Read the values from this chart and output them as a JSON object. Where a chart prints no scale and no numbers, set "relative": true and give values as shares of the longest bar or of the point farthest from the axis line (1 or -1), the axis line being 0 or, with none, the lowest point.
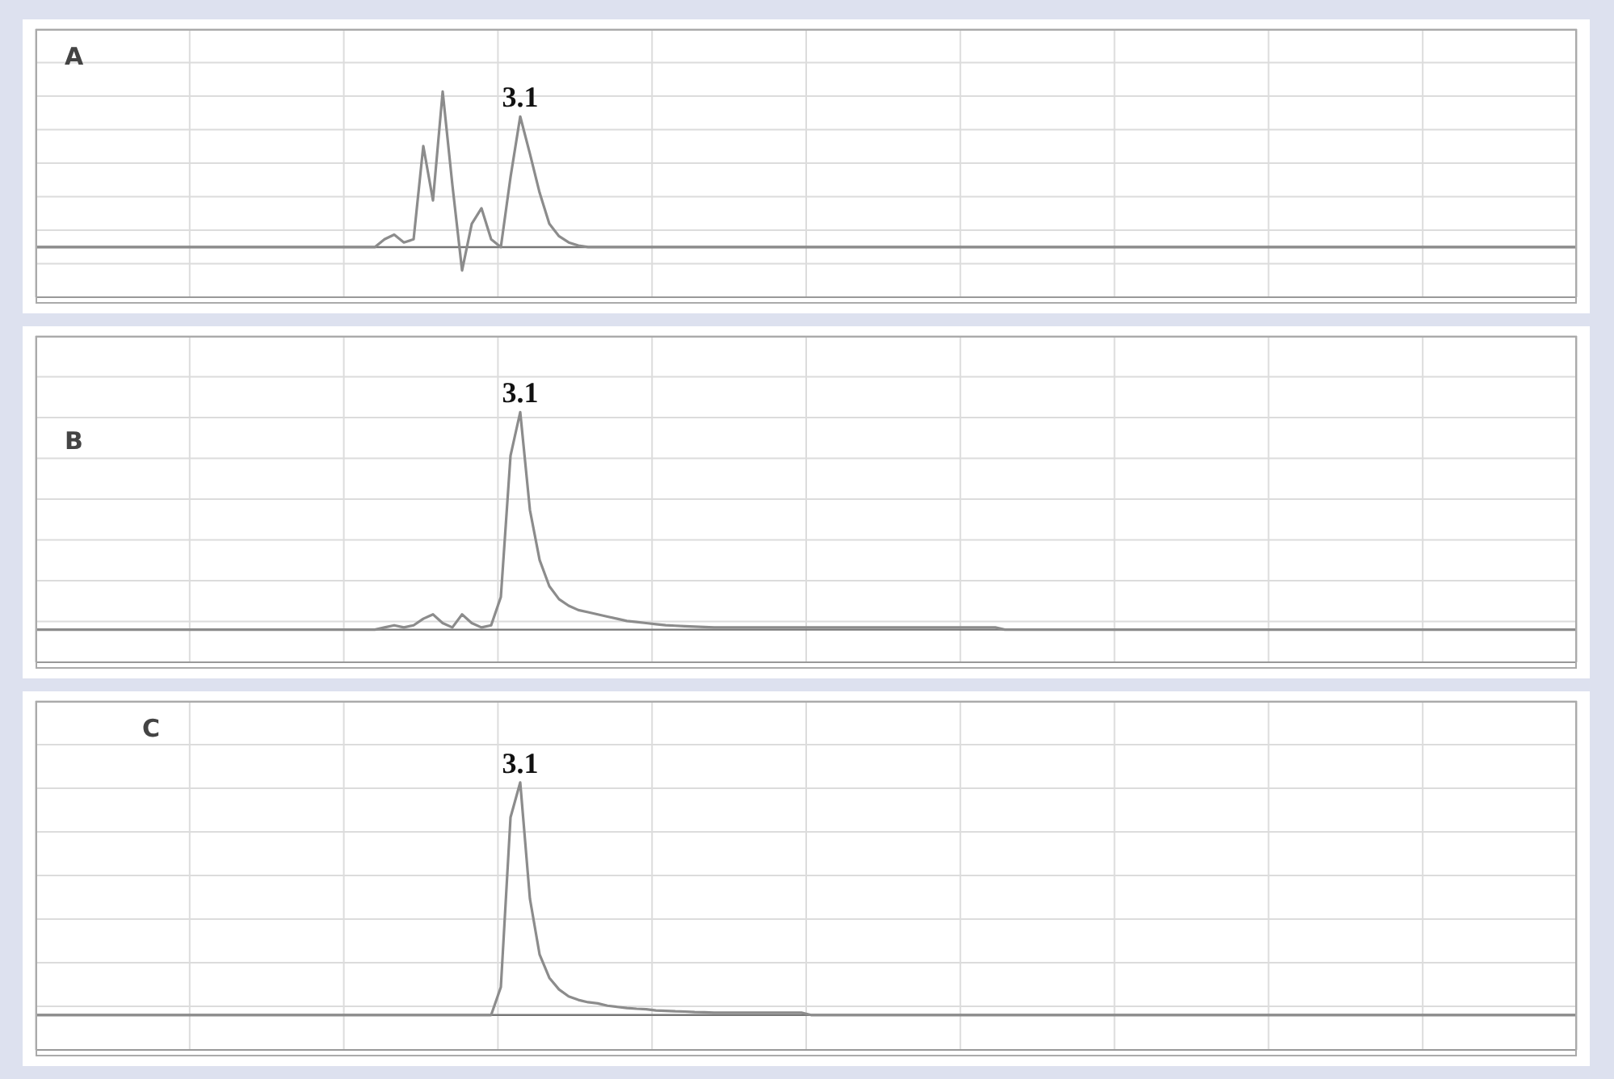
{
  "chart_data": [
    {
      "type": "line",
      "title": "A",
      "relative": true,
      "grid": true,
      "marker": "none",
      "color": "#8c8c8c",
      "annotations": [
        {
          "text": "3.1",
          "y": 0.84
        }
      ],
      "categories": [
        null,
        null,
        null,
        null,
        null,
        null,
        null,
        null,
        null,
        null,
        null,
        null,
        null,
        null,
        null,
        null,
        null,
        null,
        null,
        null,
        null,
        null,
        null,
        null,
        null,
        null,
        null,
        null,
        null,
        null,
        null,
        null,
        null,
        null,
        null,
        null,
        null,
        null,
        null,
        null,
        null,
        null,
        null,
        null,
        null,
        null,
        null,
        null,
        null,
        null,
        null,
        null,
        null,
        null,
        null,
        null,
        null,
        null,
        null,
        null,
        null,
        null,
        null,
        null,
        null,
        null,
        null,
        null,
        null,
        null,
        null,
        null,
        null,
        null,
        null,
        null,
        null,
        null,
        null,
        null,
        null,
        null,
        null,
        null,
        null,
        null,
        null,
        null,
        null,
        null,
        null,
        null,
        null,
        null,
        null,
        null,
        null,
        null,
        null,
        null,
        null,
        null,
        null,
        null,
        null,
        null,
        null,
        null,
        null,
        null,
        null,
        null,
        null,
        null,
        null,
        null,
        null,
        null,
        null,
        null,
        null,
        null,
        null,
        null,
        null,
        null,
        null,
        null,
        null,
        null,
        null,
        null,
        null,
        null,
        null,
        null,
        null,
        null,
        null,
        null,
        null,
        null,
        null,
        null,
        null,
        null,
        null,
        null,
        null,
        null,
        null,
        null,
        null,
        null,
        null,
        null,
        null,
        null,
        null,
        null
      ],
      "values": [
        0,
        0,
        0,
        0,
        0,
        0,
        0,
        0,
        0,
        0,
        0,
        0,
        0,
        0,
        0,
        0,
        0,
        0,
        0,
        0,
        0,
        0,
        0,
        0,
        0,
        0,
        0,
        0,
        0,
        0,
        0,
        0,
        0,
        0,
        0,
        0,
        0.05,
        0.08,
        0.03,
        0.05,
        0.65,
        0.3,
        1,
        0.4,
        -0.15,
        0.15,
        0.25,
        0.05,
        0,
        0.45,
        0.84,
        0.6,
        0.35,
        0.15,
        0.07,
        0.03,
        0.01,
        0,
        0,
        0,
        0,
        0,
        0,
        0,
        0,
        0,
        0,
        0,
        0,
        0,
        0,
        0,
        0,
        0,
        0,
        0,
        0,
        0,
        0,
        0,
        0,
        0,
        0,
        0,
        0,
        0,
        0,
        0,
        0,
        0,
        0,
        0,
        0,
        0,
        0,
        0,
        0,
        0,
        0,
        0,
        0,
        0,
        0,
        0,
        0,
        0,
        0,
        0,
        0,
        0,
        0,
        0,
        0,
        0,
        0,
        0,
        0,
        0,
        0,
        0,
        0,
        0,
        0,
        0,
        0,
        0,
        0,
        0,
        0,
        0,
        0,
        0,
        0,
        0,
        0,
        0,
        0,
        0,
        0,
        0,
        0,
        0,
        0,
        0,
        0,
        0,
        0,
        0,
        0,
        0,
        0,
        0,
        0,
        0,
        0,
        0,
        0,
        0,
        0,
        0
      ]
    },
    {
      "type": "line",
      "title": "B",
      "relative": true,
      "grid": true,
      "marker": "none",
      "color": "#8c8c8c",
      "annotations": [
        {
          "text": "3.1",
          "y": 1
        }
      ],
      "categories": [
        null,
        null,
        null,
        null,
        null,
        null,
        null,
        null,
        null,
        null,
        null,
        null,
        null,
        null,
        null,
        null,
        null,
        null,
        null,
        null,
        null,
        null,
        null,
        null,
        null,
        null,
        null,
        null,
        null,
        null,
        null,
        null,
        null,
        null,
        null,
        null,
        null,
        null,
        null,
        null,
        null,
        null,
        null,
        null,
        null,
        null,
        null,
        null,
        null,
        null,
        null,
        null,
        null,
        null,
        null,
        null,
        null,
        null,
        null,
        null,
        null,
        null,
        null,
        null,
        null,
        null,
        null,
        null,
        null,
        null,
        null,
        null,
        null,
        null,
        null,
        null,
        null,
        null,
        null,
        null,
        null,
        null,
        null,
        null,
        null,
        null,
        null,
        null,
        null,
        null,
        null,
        null,
        null,
        null,
        null,
        null,
        null,
        null,
        null,
        null,
        null,
        null,
        null,
        null,
        null,
        null,
        null,
        null,
        null,
        null,
        null,
        null,
        null,
        null,
        null,
        null,
        null,
        null,
        null,
        null,
        null,
        null,
        null,
        null,
        null,
        null,
        null,
        null,
        null,
        null,
        null,
        null,
        null,
        null,
        null,
        null,
        null,
        null,
        null,
        null,
        null,
        null,
        null,
        null,
        null,
        null,
        null,
        null,
        null,
        null,
        null,
        null,
        null,
        null,
        null,
        null,
        null,
        null,
        null,
        null
      ],
      "values": [
        0,
        0,
        0,
        0,
        0,
        0,
        0,
        0,
        0,
        0,
        0,
        0,
        0,
        0,
        0,
        0,
        0,
        0,
        0,
        0,
        0,
        0,
        0,
        0,
        0,
        0,
        0,
        0,
        0,
        0,
        0,
        0,
        0,
        0,
        0,
        0,
        0.01,
        0.02,
        0.01,
        0.02,
        0.05,
        0.07,
        0.03,
        0.01,
        0.07,
        0.03,
        0.01,
        0.02,
        0.15,
        0.8,
        1,
        0.55,
        0.32,
        0.2,
        0.14,
        0.11,
        0.09,
        0.08,
        0.07,
        0.06,
        0.05,
        0.04,
        0.035,
        0.03,
        0.025,
        0.02,
        0.018,
        0.016,
        0.014,
        0.012,
        0.01,
        0.01,
        0.01,
        0.01,
        0.01,
        0.01,
        0.01,
        0.01,
        0.01,
        0.01,
        0.01,
        0.01,
        0.01,
        0.01,
        0.01,
        0.01,
        0.01,
        0.01,
        0.01,
        0.01,
        0.01,
        0.01,
        0.01,
        0.01,
        0.01,
        0.01,
        0.01,
        0.01,
        0.01,
        0.01,
        0,
        0,
        0,
        0,
        0,
        0,
        0,
        0,
        0,
        0,
        0,
        0,
        0,
        0,
        0,
        0,
        0,
        0,
        0,
        0,
        0,
        0,
        0,
        0,
        0,
        0,
        0,
        0,
        0,
        0,
        0,
        0,
        0,
        0,
        0,
        0,
        0,
        0,
        0,
        0,
        0,
        0,
        0,
        0,
        0,
        0,
        0,
        0,
        0,
        0,
        0,
        0,
        0,
        0,
        0,
        0,
        0,
        0,
        0,
        0
      ]
    },
    {
      "type": "line",
      "title": "C",
      "relative": true,
      "grid": true,
      "marker": "none",
      "color": "#8c8c8c",
      "annotations": [
        {
          "text": "3.1",
          "y": 1
        }
      ],
      "categories": [
        null,
        null,
        null,
        null,
        null,
        null,
        null,
        null,
        null,
        null,
        null,
        null,
        null,
        null,
        null,
        null,
        null,
        null,
        null,
        null,
        null,
        null,
        null,
        null,
        null,
        null,
        null,
        null,
        null,
        null,
        null,
        null,
        null,
        null,
        null,
        null,
        null,
        null,
        null,
        null,
        null,
        null,
        null,
        null,
        null,
        null,
        null,
        null,
        null,
        null,
        null,
        null,
        null,
        null,
        null,
        null,
        null,
        null,
        null,
        null,
        null,
        null,
        null,
        null,
        null,
        null,
        null,
        null,
        null,
        null,
        null,
        null,
        null,
        null,
        null,
        null,
        null,
        null,
        null,
        null,
        null,
        null,
        null,
        null,
        null,
        null,
        null,
        null,
        null,
        null,
        null,
        null,
        null,
        null,
        null,
        null,
        null,
        null,
        null,
        null,
        null,
        null,
        null,
        null,
        null,
        null,
        null,
        null,
        null,
        null,
        null,
        null,
        null,
        null,
        null,
        null,
        null,
        null,
        null,
        null,
        null,
        null,
        null,
        null,
        null,
        null,
        null,
        null,
        null,
        null,
        null,
        null,
        null,
        null,
        null,
        null,
        null,
        null,
        null,
        null,
        null,
        null,
        null,
        null,
        null,
        null,
        null,
        null,
        null,
        null,
        null,
        null,
        null,
        null,
        null,
        null,
        null,
        null,
        null,
        null
      ],
      "values": [
        0,
        0,
        0,
        0,
        0,
        0,
        0,
        0,
        0,
        0,
        0,
        0,
        0,
        0,
        0,
        0,
        0,
        0,
        0,
        0,
        0,
        0,
        0,
        0,
        0,
        0,
        0,
        0,
        0,
        0,
        0,
        0,
        0,
        0,
        0,
        0,
        0,
        0,
        0,
        0,
        0,
        0,
        0,
        0,
        0,
        0,
        0,
        0,
        0.12,
        0.85,
        1,
        0.5,
        0.26,
        0.16,
        0.11,
        0.08,
        0.065,
        0.055,
        0.05,
        0.04,
        0.035,
        0.03,
        0.027,
        0.025,
        0.02,
        0.018,
        0.016,
        0.015,
        0.013,
        0.012,
        0.01,
        0.01,
        0.01,
        0.01,
        0.01,
        0.01,
        0.01,
        0.01,
        0.01,
        0.01,
        0,
        0,
        0,
        0,
        0,
        0,
        0,
        0,
        0,
        0,
        0,
        0,
        0,
        0,
        0,
        0,
        0,
        0,
        0,
        0,
        0,
        0,
        0,
        0,
        0,
        0,
        0,
        0,
        0,
        0,
        0,
        0,
        0,
        0,
        0,
        0,
        0,
        0,
        0,
        0,
        0,
        0,
        0,
        0,
        0,
        0,
        0,
        0,
        0,
        0,
        0,
        0,
        0,
        0,
        0,
        0,
        0,
        0,
        0,
        0,
        0,
        0,
        0,
        0,
        0,
        0,
        0,
        0,
        0,
        0,
        0,
        0,
        0,
        0,
        0,
        0,
        0,
        0,
        0,
        0
      ]
    }
  ]
}
